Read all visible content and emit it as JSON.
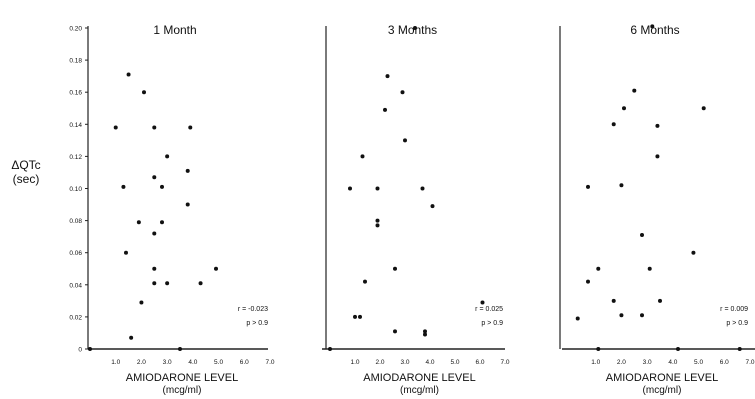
{
  "figure": {
    "ylabel_line1": "ΔQTc",
    "ylabel_line2": "(sec)"
  },
  "chart_data": [
    {
      "type": "scatter",
      "title": "1 Month",
      "xlabel": "AMIODARONE LEVEL",
      "xlabel_unit": "(mcg/ml)",
      "ylabel": "ΔQTc (sec)",
      "xlim": [
        0,
        7.0
      ],
      "ylim": [
        0,
        0.2
      ],
      "xticks": [
        "1.0",
        "2.0",
        "3.0",
        "4.0",
        "5.0",
        "6.0",
        "7.0"
      ],
      "yticks": [
        "0",
        "0.02",
        "0.04",
        "0.06",
        "0.08",
        "0.10",
        "0.12",
        "0.14",
        "0.16",
        "0.18",
        "0.20"
      ],
      "stats": [
        "r = -0.023",
        "p > 0.9"
      ],
      "grid": false,
      "points": [
        {
          "x": 0.0,
          "y": 0.0
        },
        {
          "x": 1.0,
          "y": 0.138
        },
        {
          "x": 1.3,
          "y": 0.101
        },
        {
          "x": 1.4,
          "y": 0.06
        },
        {
          "x": 1.5,
          "y": 0.171
        },
        {
          "x": 1.6,
          "y": 0.007
        },
        {
          "x": 1.9,
          "y": 0.079
        },
        {
          "x": 2.0,
          "y": 0.029
        },
        {
          "x": 2.1,
          "y": 0.16
        },
        {
          "x": 2.5,
          "y": 0.138
        },
        {
          "x": 2.5,
          "y": 0.107
        },
        {
          "x": 2.5,
          "y": 0.072
        },
        {
          "x": 2.5,
          "y": 0.05
        },
        {
          "x": 2.5,
          "y": 0.041
        },
        {
          "x": 2.8,
          "y": 0.101
        },
        {
          "x": 2.8,
          "y": 0.079
        },
        {
          "x": 3.0,
          "y": 0.12
        },
        {
          "x": 3.0,
          "y": 0.041
        },
        {
          "x": 3.5,
          "y": 0.0
        },
        {
          "x": 3.9,
          "y": 0.138
        },
        {
          "x": 3.8,
          "y": 0.111
        },
        {
          "x": 3.8,
          "y": 0.09
        },
        {
          "x": 4.3,
          "y": 0.041
        },
        {
          "x": 4.9,
          "y": 0.05
        }
      ]
    },
    {
      "type": "scatter",
      "title": "3 Months",
      "xlabel": "AMIODARONE LEVEL",
      "xlabel_unit": "(mcg/ml)",
      "ylabel": "ΔQTc (sec)",
      "xlim": [
        0,
        7.0
      ],
      "ylim": [
        0,
        0.2
      ],
      "xticks": [
        "1.0",
        "2.0",
        "3.0",
        "4.0",
        "5.0",
        "6.0",
        "7.0"
      ],
      "stats": [
        "r = 0.025",
        "p > 0.9"
      ],
      "grid": false,
      "points": [
        {
          "x": 0.0,
          "y": 0.0
        },
        {
          "x": 0.8,
          "y": 0.1
        },
        {
          "x": 1.0,
          "y": 0.02
        },
        {
          "x": 1.2,
          "y": 0.02
        },
        {
          "x": 1.3,
          "y": 0.12
        },
        {
          "x": 1.4,
          "y": 0.042
        },
        {
          "x": 1.9,
          "y": 0.1
        },
        {
          "x": 1.9,
          "y": 0.08
        },
        {
          "x": 1.9,
          "y": 0.077
        },
        {
          "x": 2.2,
          "y": 0.149
        },
        {
          "x": 2.3,
          "y": 0.17
        },
        {
          "x": 2.6,
          "y": 0.05
        },
        {
          "x": 2.6,
          "y": 0.011
        },
        {
          "x": 2.9,
          "y": 0.16
        },
        {
          "x": 3.0,
          "y": 0.13
        },
        {
          "x": 3.4,
          "y": 0.2
        },
        {
          "x": 3.7,
          "y": 0.1
        },
        {
          "x": 3.8,
          "y": 0.011
        },
        {
          "x": 3.8,
          "y": 0.009
        },
        {
          "x": 4.1,
          "y": 0.089
        },
        {
          "x": 6.1,
          "y": 0.029
        }
      ]
    },
    {
      "type": "scatter",
      "title": "6 Months",
      "xlabel": "AMIODARONE LEVEL",
      "xlabel_unit": "(mcg/ml)",
      "ylabel": "ΔQTc (sec)",
      "xlim": [
        0,
        7.0
      ],
      "ylim": [
        0,
        0.2
      ],
      "xticks": [
        "1.0",
        "2.0",
        "3.0",
        "4.0",
        "5.0",
        "6.0",
        "7.0"
      ],
      "stats": [
        "r = 0.009",
        "p > 0.9"
      ],
      "grid": false,
      "points": [
        {
          "x": 0.3,
          "y": 0.019
        },
        {
          "x": 0.7,
          "y": 0.101
        },
        {
          "x": 0.7,
          "y": 0.042
        },
        {
          "x": 1.1,
          "y": 0.05
        },
        {
          "x": 1.1,
          "y": 0.0
        },
        {
          "x": 1.7,
          "y": 0.03
        },
        {
          "x": 1.7,
          "y": 0.14
        },
        {
          "x": 2.0,
          "y": 0.102
        },
        {
          "x": 2.0,
          "y": 0.021
        },
        {
          "x": 2.1,
          "y": 0.15
        },
        {
          "x": 2.5,
          "y": 0.161
        },
        {
          "x": 2.8,
          "y": 0.021
        },
        {
          "x": 2.8,
          "y": 0.071
        },
        {
          "x": 3.1,
          "y": 0.05
        },
        {
          "x": 3.2,
          "y": 0.201
        },
        {
          "x": 3.4,
          "y": 0.12
        },
        {
          "x": 3.4,
          "y": 0.139
        },
        {
          "x": 3.5,
          "y": 0.03
        },
        {
          "x": 4.2,
          "y": 0.0
        },
        {
          "x": 4.8,
          "y": 0.06
        },
        {
          "x": 5.2,
          "y": 0.15
        },
        {
          "x": 6.6,
          "y": 0.0
        }
      ]
    }
  ]
}
